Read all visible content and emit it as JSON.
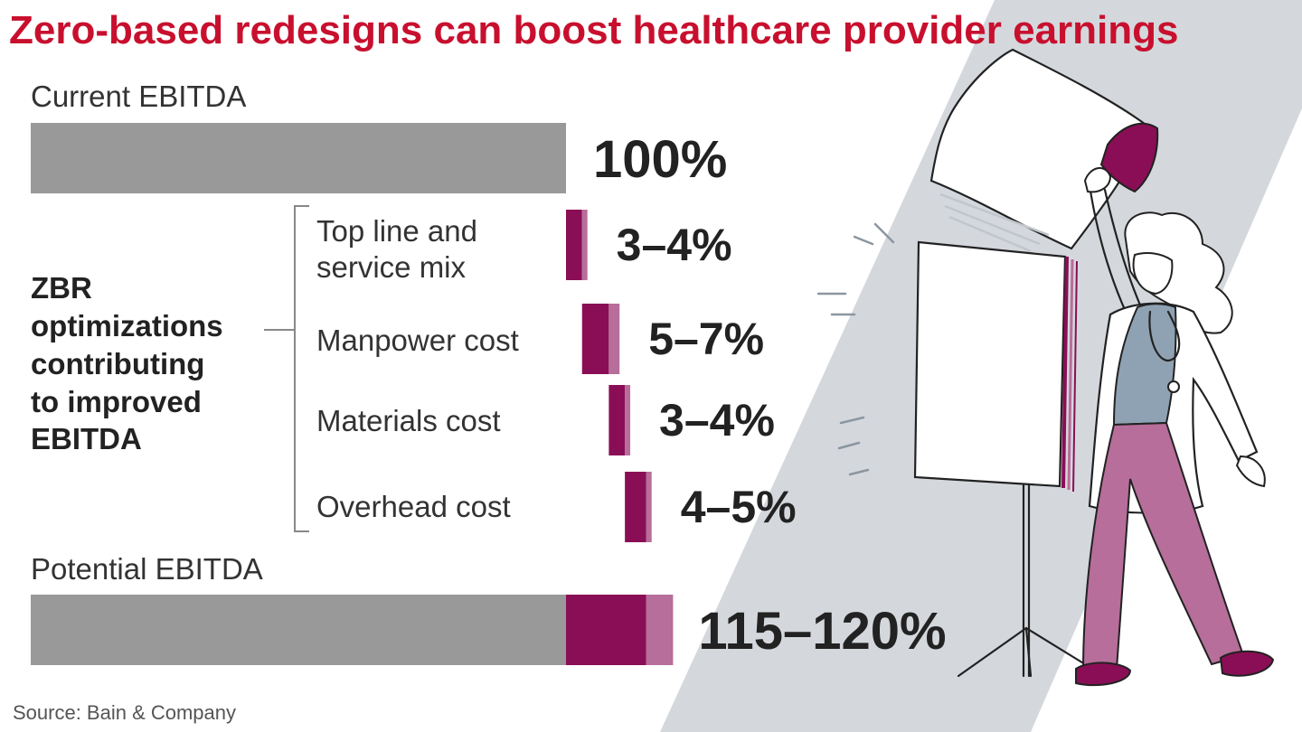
{
  "title": "Zero-based redesigns can boost healthcare provider earnings",
  "source": "Source: Bain & Company",
  "colors": {
    "title": "#c8102e",
    "base": "#999999",
    "dark": "#8a0e55",
    "light": "#b76e9a",
    "panel": "#d4d8dd"
  },
  "illustration": "doctor-flipping-chart-illustration",
  "chart_data": {
    "type": "bar",
    "subtype": "waterfall",
    "unit": "%",
    "baseline": {
      "label": "Current EBITDA",
      "value": 100,
      "value_label": "100%"
    },
    "group_label": [
      "ZBR",
      "optimizations",
      "contributing",
      "to improved",
      "EBITDA"
    ],
    "steps": [
      {
        "label": [
          "Top line and",
          "service mix"
        ],
        "low": 3,
        "high": 4,
        "value_label": "3–4%"
      },
      {
        "label": [
          "Manpower cost"
        ],
        "low": 5,
        "high": 7,
        "value_label": "5–7%"
      },
      {
        "label": [
          "Materials cost"
        ],
        "low": 3,
        "high": 4,
        "value_label": "3–4%"
      },
      {
        "label": [
          "Overhead cost"
        ],
        "low": 4,
        "high": 5,
        "value_label": "4–5%"
      }
    ],
    "total": {
      "label": "Potential EBITDA",
      "low": 115,
      "high": 120,
      "value_label": "115–120%"
    }
  }
}
